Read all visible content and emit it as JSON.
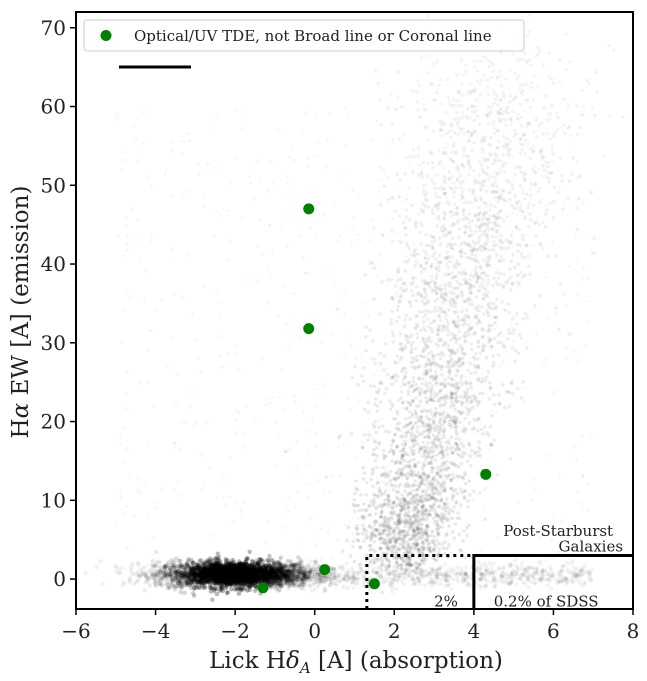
{
  "chart_data": {
    "type": "scatter",
    "title": "",
    "xlabel_parts": [
      "Lick H",
      "δ",
      "A",
      " [A] (absorption)"
    ],
    "ylabel_parts": [
      "H",
      "α",
      " EW [A] (emission)"
    ],
    "xlim": [
      -6,
      8
    ],
    "ylim": [
      -3.8,
      72
    ],
    "xticks": [
      -6,
      -4,
      -2,
      0,
      2,
      4,
      6,
      8
    ],
    "yticks": [
      0,
      10,
      20,
      30,
      40,
      50,
      60,
      70
    ],
    "xtick_labels": [
      "−6",
      "−4",
      "−2",
      "0",
      "2",
      "4",
      "6",
      "8"
    ],
    "ytick_labels": [
      "0",
      "10",
      "20",
      "30",
      "40",
      "50",
      "60",
      "70"
    ],
    "legend": {
      "placement": "top-left",
      "entries": [
        {
          "label": "Optical/UV TDE, not Broad line or Coronal line",
          "color": "#008000"
        }
      ]
    },
    "series": [
      {
        "name": "Optical/UV TDE, not Broad line or Coronal line",
        "color": "#008000",
        "x": [
          -0.15,
          -0.15,
          4.3,
          0.25,
          1.5,
          -1.3
        ],
        "y": [
          47.0,
          31.8,
          13.3,
          1.2,
          -0.6,
          -1.1
        ]
      }
    ],
    "background_density": {
      "description": "grey hexbin density of SDSS galaxies",
      "color": "#000000"
    },
    "regions": [
      {
        "name": "2%",
        "style": "dotted",
        "x_min": 1.31,
        "y_max": 3.0,
        "label": "2%"
      },
      {
        "name": "0.2% of SDSS",
        "style": "solid",
        "x_min": 4.0,
        "y_max": 3.0,
        "label": "0.2% of SDSS"
      }
    ],
    "region_title_line1": "Post-Starburst",
    "region_title_line2": "Galaxies",
    "grid": false
  }
}
